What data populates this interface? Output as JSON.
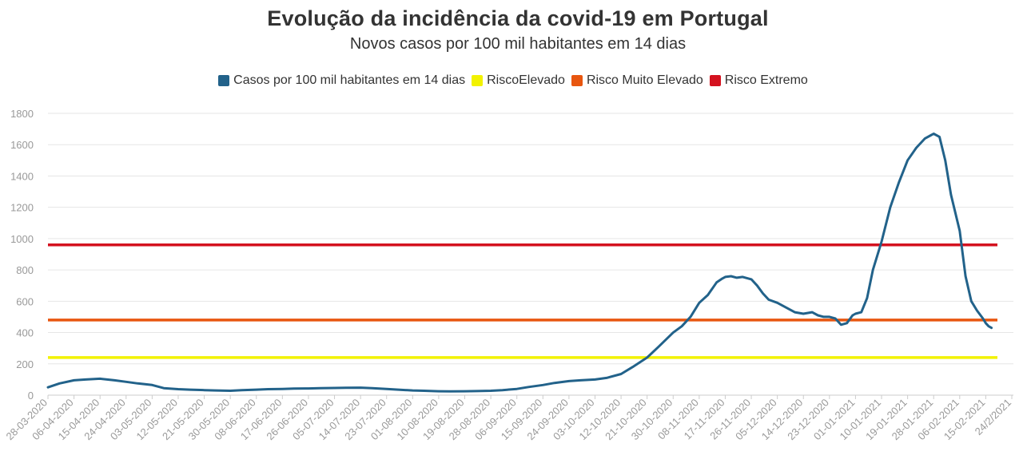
{
  "chart_data": {
    "type": "line",
    "title": "Evolução da incidência da covid-19 em Portugal",
    "subtitle": "Novos casos por 100 mil habitantes em 14 dias",
    "xlabel": "",
    "ylabel": "",
    "ylim": [
      0,
      1800
    ],
    "yticks": [
      "0",
      "200",
      "400",
      "600",
      "800",
      "1000",
      "1200",
      "1400",
      "1600",
      "1800"
    ],
    "xticks": [
      "28-03-2020",
      "06-04-2020",
      "15-04-2020",
      "24-04-2020",
      "03-05-2020",
      "12-05-2020",
      "21-05-2020",
      "30-05-2020",
      "08-06-2020",
      "17-06-2020",
      "26-06-2020",
      "05-07-2020",
      "14-07-2020",
      "23-07-2020",
      "01-08-2020",
      "10-08-2020",
      "19-08-2020",
      "28-08-2020",
      "06-09-2020",
      "15-09-2020",
      "24-09-2020",
      "03-10-2020",
      "12-10-2020",
      "21-10-2020",
      "30-10-2020",
      "08-11-2020",
      "17-11-2020",
      "26-11-2020",
      "05-12-2020",
      "14-12-2020",
      "23-12-2020",
      "01-01-2021",
      "10-01-2021",
      "19-01-2021",
      "28-01-2021",
      "06-02-2021",
      "15-02-2021",
      "24/2/2021"
    ],
    "grid": true,
    "legend_position": "top",
    "series": [
      {
        "name": "Casos por 100 mil habitantes em 14 dias",
        "color": "#22628a",
        "x": [
          "28-03-2020",
          "01-04-2020",
          "06-04-2020",
          "10-04-2020",
          "15-04-2020",
          "20-04-2020",
          "24-04-2020",
          "28-04-2020",
          "03-05-2020",
          "07-05-2020",
          "12-05-2020",
          "16-05-2020",
          "21-05-2020",
          "25-05-2020",
          "30-05-2020",
          "03-06-2020",
          "08-06-2020",
          "12-06-2020",
          "17-06-2020",
          "21-06-2020",
          "26-06-2020",
          "30-06-2020",
          "05-07-2020",
          "09-07-2020",
          "14-07-2020",
          "18-07-2020",
          "23-07-2020",
          "27-07-2020",
          "01-08-2020",
          "05-08-2020",
          "10-08-2020",
          "14-08-2020",
          "19-08-2020",
          "23-08-2020",
          "28-08-2020",
          "01-09-2020",
          "06-09-2020",
          "10-09-2020",
          "15-09-2020",
          "19-09-2020",
          "24-09-2020",
          "28-09-2020",
          "03-10-2020",
          "07-10-2020",
          "12-10-2020",
          "16-10-2020",
          "21-10-2020",
          "25-10-2020",
          "30-10-2020",
          "02-11-2020",
          "05-11-2020",
          "08-11-2020",
          "11-11-2020",
          "14-11-2020",
          "16-11-2020",
          "17-11-2020",
          "19-11-2020",
          "21-11-2020",
          "23-11-2020",
          "26-11-2020",
          "28-11-2020",
          "30-11-2020",
          "02-12-2020",
          "05-12-2020",
          "08-12-2020",
          "11-12-2020",
          "14-12-2020",
          "17-12-2020",
          "19-12-2020",
          "21-12-2020",
          "23-12-2020",
          "25-12-2020",
          "27-12-2020",
          "29-12-2020",
          "31-12-2020",
          "01-01-2021",
          "03-01-2021",
          "05-01-2021",
          "07-01-2021",
          "10-01-2021",
          "13-01-2021",
          "16-01-2021",
          "19-01-2021",
          "22-01-2021",
          "25-01-2021",
          "27-01-2021",
          "28-01-2021",
          "30-01-2021",
          "01-02-2021",
          "03-02-2021",
          "06-02-2021",
          "08-02-2021",
          "10-02-2021",
          "12-02-2021",
          "14-02-2021",
          "15-02-2021",
          "16-02-2021",
          "17-02-2021"
        ],
        "values": [
          50,
          75,
          95,
          100,
          105,
          95,
          85,
          75,
          65,
          45,
          38,
          35,
          32,
          30,
          28,
          32,
          35,
          38,
          40,
          42,
          43,
          45,
          46,
          47,
          48,
          45,
          40,
          35,
          30,
          28,
          25,
          24,
          25,
          26,
          28,
          32,
          40,
          52,
          65,
          78,
          90,
          95,
          100,
          110,
          135,
          180,
          240,
          310,
          400,
          440,
          500,
          590,
          640,
          720,
          745,
          755,
          760,
          750,
          755,
          740,
          700,
          650,
          610,
          590,
          560,
          530,
          520,
          530,
          510,
          500,
          500,
          490,
          450,
          460,
          510,
          520,
          530,
          620,
          800,
          980,
          1200,
          1360,
          1500,
          1580,
          1640,
          1660,
          1670,
          1650,
          1500,
          1280,
          1050,
          760,
          600,
          540,
          490,
          460,
          440,
          430
        ]
      },
      {
        "name": "RiscoElevado",
        "color": "#f2f200",
        "values": [
          240
        ]
      },
      {
        "name": "Risco Muito Elevado",
        "color": "#e8560f",
        "values": [
          480
        ]
      },
      {
        "name": "Risco Extremo",
        "color": "#d4121f",
        "values": [
          960
        ]
      }
    ]
  }
}
